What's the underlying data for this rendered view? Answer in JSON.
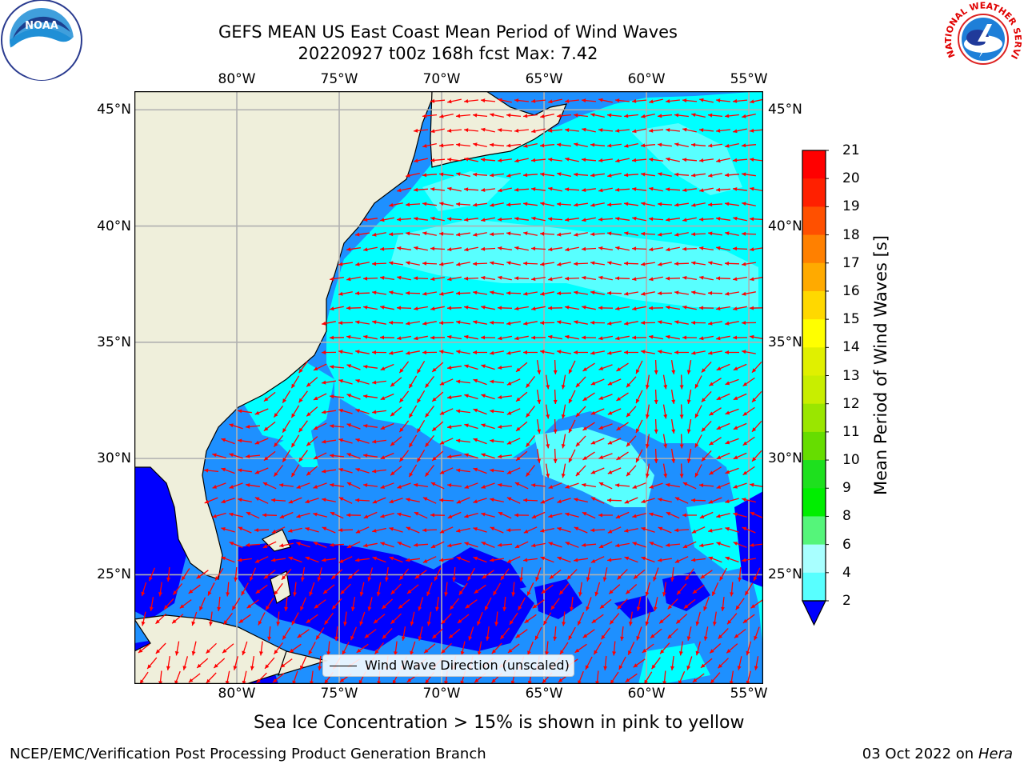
{
  "title": {
    "line1": "GEFS MEAN US East Coast Mean Period of Wind Waves",
    "line2": "20220927 t00z 168h fcst   Max: 7.42"
  },
  "map": {
    "lon_range": [
      -85,
      -54.3
    ],
    "lat_range": [
      20.3,
      45.8
    ],
    "lon_ticks": [
      "80°W",
      "75°W",
      "70°W",
      "65°W",
      "60°W",
      "55°W"
    ],
    "lat_ticks": [
      "45°N",
      "40°N",
      "35°N",
      "30°N",
      "25°N"
    ],
    "ocean_color": "#1e90ff",
    "land_color": "#efefdb",
    "arrow_color": "#ff0000",
    "grid": true
  },
  "legend": {
    "label": "Wind Wave Direction (unscaled)"
  },
  "colorbar": {
    "label": "Mean Period of Wind Waves [s]",
    "ticks": [
      "21",
      "20",
      "19",
      "18",
      "17",
      "16",
      "15",
      "14",
      "13",
      "12",
      "11",
      "10",
      "9",
      "8",
      "6",
      "4",
      "2"
    ],
    "colors": [
      "#ff0000",
      "#ff2000",
      "#ff5000",
      "#ff8000",
      "#ffaa00",
      "#ffd800",
      "#ffff00",
      "#e0f000",
      "#c8ee00",
      "#9ae600",
      "#66dd00",
      "#1ee01e",
      "#00ee00",
      "#55f57a",
      "#a8ffff",
      "#58ffff",
      "#00ffff",
      "#1e8cff"
    ],
    "extend_color": "#0000ff"
  },
  "ice_note": "Sea Ice Concentration > 15% is shown in pink to yellow",
  "footer": {
    "left": "NCEP/EMC/Verification Post Processing Product Generation Branch",
    "right_prefix": "03 Oct 2022 on ",
    "right_host": "Hera"
  },
  "logos": {
    "left": "NOAA",
    "right": "NATIONAL WEATHER SERVICE"
  }
}
